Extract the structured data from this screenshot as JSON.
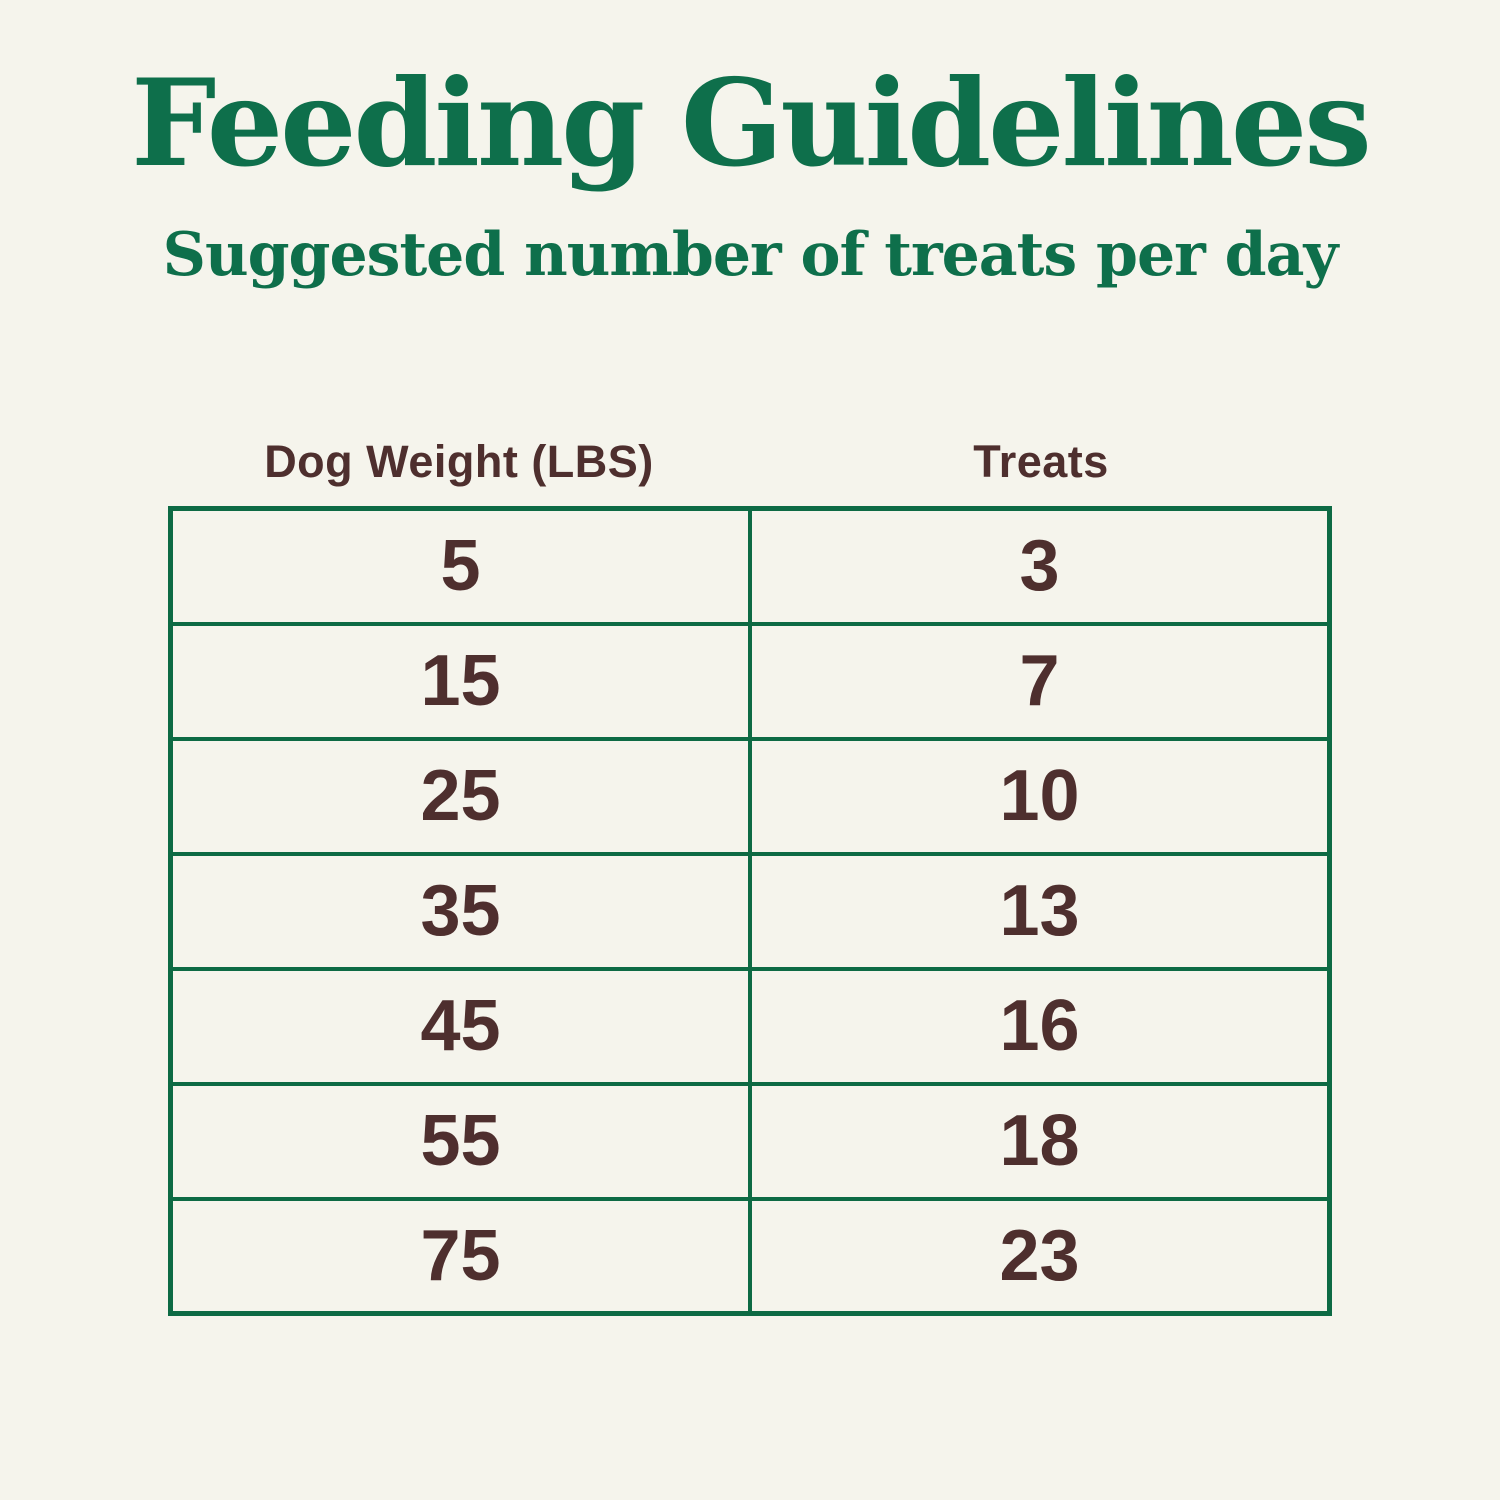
{
  "page": {
    "title": "Feeding Guidelines",
    "subtitle": "Suggested number of treats per day"
  },
  "chart_data": {
    "type": "table",
    "title": "Feeding Guidelines",
    "subtitle": "Suggested number of treats per day",
    "columns": [
      "Dog Weight (LBS)",
      "Treats"
    ],
    "rows": [
      [
        "5",
        "3"
      ],
      [
        "15",
        "7"
      ],
      [
        "25",
        "10"
      ],
      [
        "35",
        "13"
      ],
      [
        "45",
        "16"
      ],
      [
        "55",
        "18"
      ],
      [
        "75",
        "23"
      ]
    ]
  },
  "colors": {
    "background": "#f5f4ec",
    "heading_green": "#0e6f4b",
    "table_border_green": "#0d6a44",
    "value_brown": "#4e2f2e"
  }
}
